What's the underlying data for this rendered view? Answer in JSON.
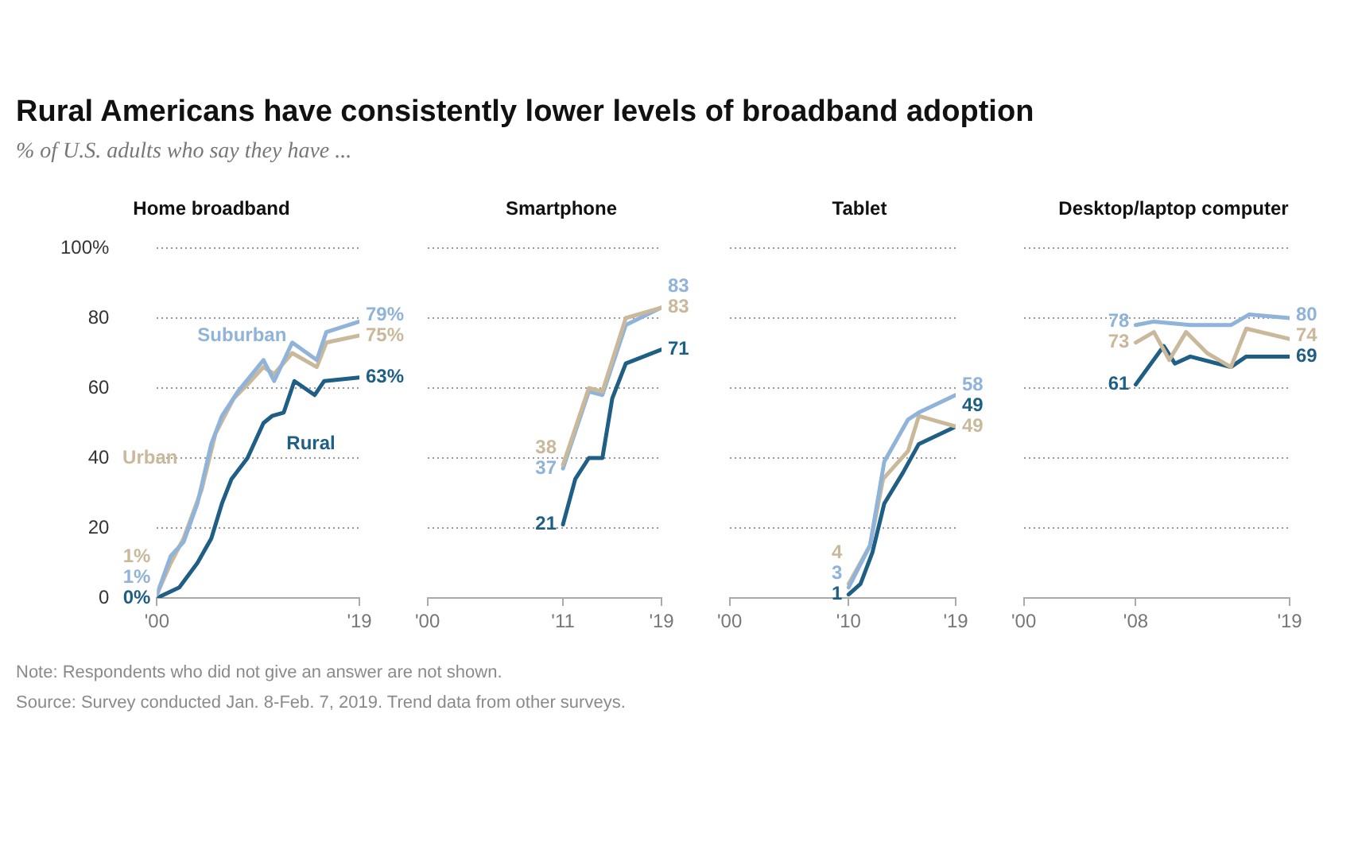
{
  "chart_data": [
    {
      "type": "other",
      "title": "Rural Americans have consistently lower levels of broadband adoption",
      "subtitle": "% of U.S. adults who say they have ..."
    },
    {
      "type": "line",
      "title": "Home broadband",
      "xlim": [
        2000,
        2019
      ],
      "xticks": [
        {
          "value": 2000,
          "label": "'00"
        },
        {
          "value": 2019,
          "label": "'19"
        }
      ],
      "ylim": [
        0,
        100
      ],
      "yticks": [
        0,
        20,
        40,
        60,
        80,
        {
          "value": 100,
          "label": "100%"
        }
      ],
      "grid": "y",
      "legend": false,
      "marker": "none",
      "line_style": "solid",
      "series": [
        {
          "name": "Suburban",
          "color": "#8fb3d9",
          "x": [
            2000,
            2001.3,
            2002.5,
            2003.8,
            2005.1,
            2006.1,
            2007.6,
            2010,
            2011,
            2012.7,
            2015,
            2015.9,
            2019
          ],
          "values": [
            1,
            12,
            16,
            27,
            44,
            52,
            59,
            68,
            62,
            73,
            68,
            76,
            79
          ],
          "value_labels": [
            "1%",
            null,
            null,
            null,
            null,
            null,
            null,
            null,
            null,
            null,
            null,
            null,
            "79%"
          ]
        },
        {
          "name": "Urban",
          "color": "#c9b99a",
          "x": [
            2000,
            2001.3,
            2002.5,
            2004.2,
            2005.5,
            2007.2,
            2008.5,
            2010,
            2011,
            2012.7,
            2015,
            2015.9,
            2019
          ],
          "values": [
            1,
            10,
            17,
            31,
            47,
            57,
            61,
            66,
            64,
            70,
            66,
            73,
            75
          ],
          "value_labels": [
            "1%",
            null,
            null,
            null,
            null,
            null,
            null,
            null,
            null,
            null,
            null,
            null,
            "75%"
          ]
        },
        {
          "name": "Rural",
          "color": "#1f5f85",
          "x": [
            2000,
            2002.1,
            2003.8,
            2005.1,
            2006.1,
            2007,
            2008.5,
            2010,
            2010.8,
            2011.9,
            2012.9,
            2014.8,
            2015.7,
            2019
          ],
          "values": [
            0,
            3,
            10,
            17,
            27,
            34,
            40,
            50,
            52,
            53,
            62,
            58,
            62,
            63
          ],
          "value_labels": [
            "0%",
            null,
            null,
            null,
            null,
            null,
            null,
            null,
            null,
            null,
            null,
            null,
            null,
            "63%"
          ]
        }
      ]
    },
    {
      "type": "line",
      "title": "Smartphone",
      "xlim": [
        2000,
        2019
      ],
      "xticks": [
        {
          "value": 2000,
          "label": "'00"
        },
        {
          "value": 2011,
          "label": "'11"
        },
        {
          "value": 2019,
          "label": "'19"
        }
      ],
      "ylim": [
        0,
        100
      ],
      "yticks": [
        0,
        20,
        40,
        60,
        80,
        100
      ],
      "tick_labels": "x",
      "grid": "y",
      "legend": false,
      "marker": "none",
      "line_style": "solid",
      "series": [
        {
          "color": "#c9b99a",
          "x": [
            2011,
            2013.1,
            2014.2,
            2016.1,
            2019
          ],
          "values": [
            38,
            60,
            59,
            80,
            83
          ],
          "value_labels": [
            "38",
            null,
            null,
            null,
            "83"
          ]
        },
        {
          "color": "#8fb3d9",
          "x": [
            2011,
            2013.1,
            2014.2,
            2016.1,
            2019
          ],
          "values": [
            37,
            59,
            58,
            78,
            83
          ],
          "value_labels": [
            "37",
            null,
            null,
            null,
            "83"
          ]
        },
        {
          "color": "#1f5f85",
          "x": [
            2011,
            2012,
            2013.1,
            2014.2,
            2015,
            2016.1,
            2019
          ],
          "values": [
            21,
            34,
            40,
            40,
            57,
            67,
            71
          ],
          "value_labels": [
            "21",
            null,
            null,
            null,
            null,
            null,
            "71"
          ]
        }
      ]
    },
    {
      "type": "line",
      "title": "Tablet",
      "xlim": [
        2000,
        2019
      ],
      "xticks": [
        {
          "value": 2000,
          "label": "'00"
        },
        {
          "value": 2010,
          "label": "'10"
        },
        {
          "value": 2019,
          "label": "'19"
        }
      ],
      "ylim": [
        0,
        100
      ],
      "yticks": [
        0,
        20,
        40,
        60,
        80,
        100
      ],
      "tick_labels": "x",
      "grid": "y",
      "legend": false,
      "marker": "none",
      "line_style": "solid",
      "series": [
        {
          "color": "#8fb3d9",
          "x": [
            2010,
            2011.8,
            2013,
            2015,
            2015.9,
            2019
          ],
          "values": [
            3,
            15,
            39,
            51,
            53,
            58
          ],
          "value_labels": [
            "3",
            null,
            null,
            null,
            null,
            "58"
          ]
        },
        {
          "color": "#c9b99a",
          "x": [
            2010,
            2011.8,
            2012.9,
            2015,
            2015.9,
            2019
          ],
          "values": [
            4,
            15,
            34,
            42,
            52,
            49
          ],
          "value_labels": [
            "4",
            null,
            null,
            null,
            null,
            "49"
          ]
        },
        {
          "color": "#1f5f85",
          "x": [
            2010,
            2011,
            2012,
            2013,
            2014.6,
            2015.9,
            2019
          ],
          "values": [
            1,
            4,
            13,
            27,
            36,
            44,
            49
          ],
          "value_labels": [
            "1",
            null,
            null,
            null,
            null,
            null,
            "49"
          ]
        }
      ]
    },
    {
      "type": "line",
      "title": "Desktop/laptop computer",
      "xlim": [
        2000,
        2019
      ],
      "xticks": [
        {
          "value": 2000,
          "label": "'00"
        },
        {
          "value": 2008,
          "label": "'08"
        },
        {
          "value": 2019,
          "label": "'19"
        }
      ],
      "ylim": [
        0,
        100
      ],
      "yticks": [
        0,
        20,
        40,
        60,
        80,
        100
      ],
      "tick_labels": "x",
      "grid": "y",
      "legend": false,
      "marker": "none",
      "line_style": "solid",
      "annotations": [
        "Note: Respondents who did not give an answer are not shown.",
        "Source: Survey conducted Jan. 8-Feb. 7, 2019. Trend data from other surveys."
      ],
      "series": [
        {
          "color": "#8fb3d9",
          "x": [
            2008,
            2009.3,
            2011.9,
            2014.8,
            2016.1,
            2019
          ],
          "values": [
            78,
            79,
            78,
            78,
            81,
            80
          ],
          "value_labels": [
            "78",
            null,
            null,
            null,
            null,
            "80"
          ]
        },
        {
          "color": "#c9b99a",
          "x": [
            2008,
            2009.3,
            2010.4,
            2011.6,
            2013.1,
            2014.8,
            2015.9,
            2019
          ],
          "values": [
            73,
            76,
            68,
            76,
            70,
            66,
            77,
            74
          ],
          "value_labels": [
            "73",
            null,
            null,
            null,
            null,
            null,
            null,
            "74"
          ]
        },
        {
          "color": "#1f5f85",
          "x": [
            2008,
            2010,
            2010.8,
            2011.9,
            2014.8,
            2015.9,
            2019
          ],
          "values": [
            61,
            72,
            67,
            69,
            66,
            69,
            69
          ],
          "value_labels": [
            "61",
            null,
            null,
            null,
            null,
            null,
            "69"
          ]
        }
      ]
    }
  ]
}
